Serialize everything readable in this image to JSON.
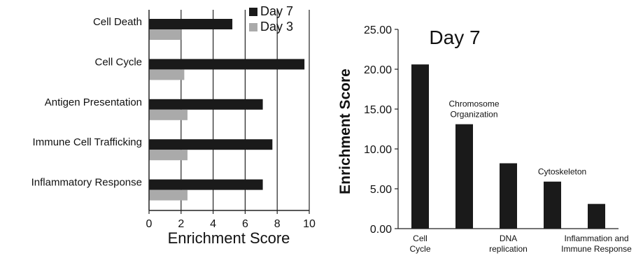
{
  "chart_data": [
    {
      "type": "bar",
      "orientation": "horizontal",
      "categories": [
        "Cell Death",
        "Cell Cycle",
        "Antigen Presentation",
        "Immune Cell Trafficking",
        "Inflammatory Response"
      ],
      "series": [
        {
          "name": "Day 7",
          "values": [
            5.2,
            9.7,
            7.1,
            7.7,
            7.1
          ],
          "color": "#1a1a1a"
        },
        {
          "name": "Day 3",
          "values": [
            2.0,
            2.2,
            2.4,
            2.4,
            2.4
          ],
          "color": "#aaaaaa"
        }
      ],
      "xlabel": "Enrichment Score",
      "ylabel": "",
      "xlim": [
        0,
        10
      ],
      "xticks": [
        "0",
        "2",
        "4",
        "6",
        "8",
        "10"
      ],
      "grid": "vertical",
      "legend": "top-right"
    },
    {
      "type": "bar",
      "title": "Day 7",
      "categories": [
        "Cell Cycle",
        "Chromosome Organization",
        "DNA replication",
        "Cytoskeleton",
        "Inflammation and Immune Response"
      ],
      "category_labels": [
        {
          "text": [
            "Cell",
            "Cycle"
          ],
          "position": "below-axis"
        },
        {
          "text": [
            "Chromosome",
            "Organization"
          ],
          "position": "above-bar"
        },
        {
          "text": [
            "DNA",
            "replication"
          ],
          "position": "below-axis"
        },
        {
          "text": [
            "Cytoskeleton"
          ],
          "position": "above-bar"
        },
        {
          "text": [
            "Inflammation and",
            "Immune Response"
          ],
          "position": "below-axis"
        }
      ],
      "values": [
        20.6,
        13.1,
        8.2,
        5.9,
        3.1
      ],
      "color": "#1a1a1a",
      "ylabel": "Enrichment Score",
      "xlabel": "",
      "ylim": [
        0,
        25
      ],
      "yticks": [
        "0.00",
        "5.00",
        "10.00",
        "15.00",
        "20.00",
        "25.00"
      ],
      "grid": "none"
    }
  ]
}
